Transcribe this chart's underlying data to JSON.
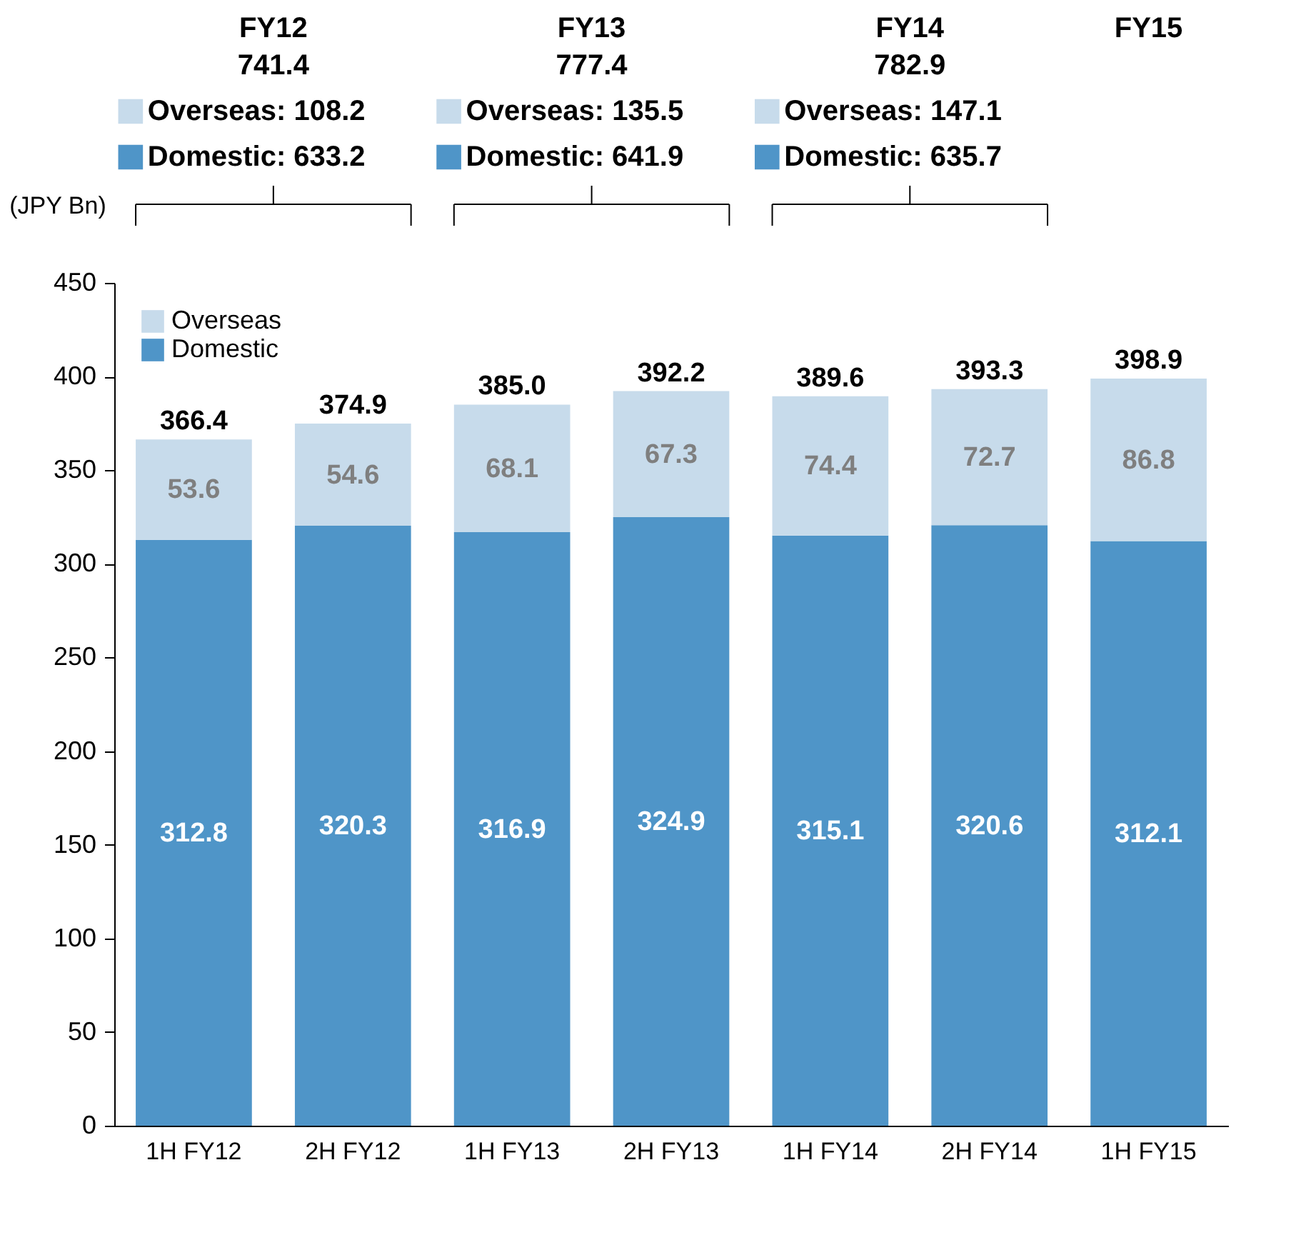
{
  "chart_data": {
    "type": "bar",
    "stacked": true,
    "ylabel": "(JPY Bn)",
    "categories": [
      "1H FY12",
      "2H FY12",
      "1H FY13",
      "2H FY13",
      "1H FY14",
      "2H FY14",
      "1H FY15"
    ],
    "series": [
      {
        "name": "Domestic",
        "color": "#4f95c8",
        "values": [
          312.8,
          320.3,
          316.9,
          324.9,
          315.1,
          320.6,
          312.1
        ]
      },
      {
        "name": "Overseas",
        "color": "#c7dbeb",
        "values": [
          53.6,
          54.6,
          68.1,
          67.3,
          74.4,
          72.7,
          86.8
        ]
      }
    ],
    "totals": [
      "366.4",
      "374.9",
      "385.0",
      "392.2",
      "389.6",
      "393.3",
      "398.9"
    ],
    "data_labels": true,
    "ylim": [
      0,
      450
    ],
    "yticks": [
      0,
      50,
      100,
      150,
      200,
      250,
      300,
      350,
      400,
      450
    ],
    "grid": false,
    "legend": "top left",
    "annotations": [
      "FY12",
      "741.4",
      "Overseas: 108.2",
      "Domestic: 633.2",
      "FY13",
      "777.4",
      "Overseas: 135.5",
      "Domestic: 641.9",
      "FY14",
      "782.9",
      "Overseas: 147.1",
      "Domestic: 635.7",
      "FY15"
    ]
  }
}
